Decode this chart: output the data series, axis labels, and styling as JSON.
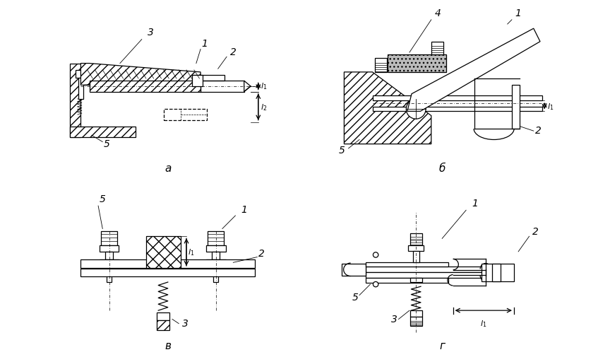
{
  "background_color": "#ffffff",
  "label_a": "а",
  "label_b": "б",
  "label_v": "в",
  "label_g": "г",
  "line_color": "#000000",
  "font_size_label": 11,
  "font_size_num": 10
}
